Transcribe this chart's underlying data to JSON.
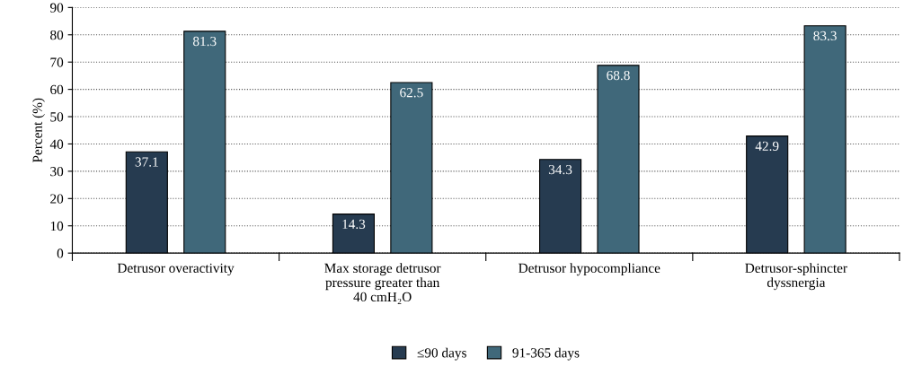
{
  "chart_data": {
    "type": "bar",
    "ylabel": "Percent (%)",
    "categories": [
      "Detrusor overactivity",
      "Max storage detrusor\npressure greater than\n40 cmH₂O",
      "Detrusor hypocompliance",
      "Detrusor-sphincter\ndyssnergia"
    ],
    "series": [
      {
        "name": "≤90 days",
        "color": "#263b50",
        "values": [
          37.1,
          14.3,
          34.3,
          42.9
        ]
      },
      {
        "name": "91-365 days",
        "color": "#40687a",
        "values": [
          81.3,
          62.5,
          68.8,
          83.3
        ]
      }
    ],
    "ylim": [
      0,
      90
    ],
    "yticks": [
      0,
      10,
      20,
      30,
      40,
      50,
      60,
      70,
      80,
      90
    ],
    "grid": "y",
    "legend": "bottom",
    "data_labels": true
  }
}
